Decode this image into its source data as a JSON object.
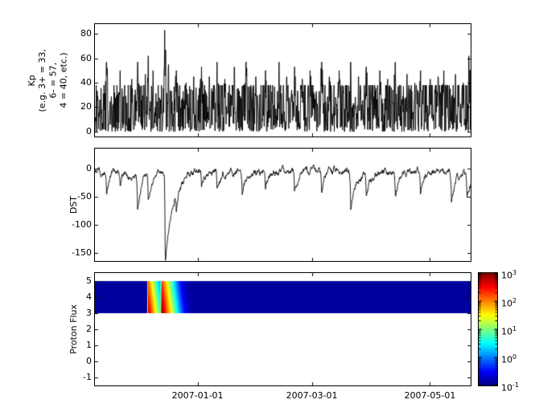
{
  "figure": {
    "background_color": "#ffffff",
    "line_color": "#000000",
    "plot_kind": "space-weather time series (Kp, DST, Proton Flux spectrogram)"
  },
  "x_axis": {
    "span_days": 194,
    "tick_days": [
      53,
      112,
      173
    ],
    "tick_labels": [
      "2007-01-01",
      "2007-03-01",
      "2007-05-01"
    ]
  },
  "chart_data": [
    {
      "type": "line",
      "ylabel": "Kp\n(e.g. 3+ = 33,\n6- = 57,\n4 = 40, etc.)",
      "ylim": [
        -4,
        88
      ],
      "yticks": [
        0,
        20,
        40,
        60,
        80
      ],
      "line_color": "#000000",
      "samples_per_day": 6,
      "seed": 1109,
      "base_level": 38,
      "storm_width_days": 1.1,
      "storm_format": [
        "day",
        "peak_kp_x10"
      ],
      "storms": [
        [
          6,
          57
        ],
        [
          13,
          50
        ],
        [
          19,
          43
        ],
        [
          22,
          57
        ],
        [
          26,
          47
        ],
        [
          27.5,
          62
        ],
        [
          30,
          50
        ],
        [
          36,
          83
        ],
        [
          38,
          55
        ],
        [
          42,
          50
        ],
        [
          47,
          40
        ],
        [
          51,
          45
        ],
        [
          55,
          53
        ],
        [
          59,
          45
        ],
        [
          63,
          57
        ],
        [
          67,
          43
        ],
        [
          72,
          53
        ],
        [
          78,
          57
        ],
        [
          83,
          45
        ],
        [
          88,
          50
        ],
        [
          95,
          57
        ],
        [
          99,
          45
        ],
        [
          103,
          53
        ],
        [
          107,
          43
        ],
        [
          111,
          50
        ],
        [
          117,
          57
        ],
        [
          121,
          45
        ],
        [
          126,
          50
        ],
        [
          132,
          57
        ],
        [
          136,
          45
        ],
        [
          140,
          53
        ],
        [
          147,
          50
        ],
        [
          151,
          43
        ],
        [
          155,
          57
        ],
        [
          161,
          47
        ],
        [
          165,
          40
        ],
        [
          168,
          50
        ],
        [
          173,
          43
        ],
        [
          177,
          45
        ],
        [
          180,
          50
        ],
        [
          186,
          47
        ],
        [
          190,
          40
        ],
        [
          193,
          62
        ]
      ]
    },
    {
      "type": "line",
      "ylabel": "DST",
      "ylim": [
        -165,
        35
      ],
      "yticks": [
        0,
        -50,
        -100,
        -150
      ],
      "line_color": "#000000",
      "samples_per_day": 8,
      "seed": 4242,
      "baseline": -6,
      "dip_format": [
        "day",
        "min_dst_nT",
        "recovery_days"
      ],
      "dips": [
        [
          6,
          -45,
          2
        ],
        [
          13,
          -30,
          1.5
        ],
        [
          22,
          -65,
          2
        ],
        [
          27.5,
          -50,
          2
        ],
        [
          36.3,
          -162,
          3.5
        ],
        [
          42,
          -35,
          1.5
        ],
        [
          55,
          -30,
          1.5
        ],
        [
          63,
          -35,
          1.5
        ],
        [
          76,
          -45,
          2
        ],
        [
          88,
          -30,
          1.5
        ],
        [
          103,
          -35,
          1.5
        ],
        [
          117,
          -40,
          2
        ],
        [
          132,
          -70,
          2.5
        ],
        [
          140,
          -40,
          2
        ],
        [
          155,
          -45,
          2
        ],
        [
          168,
          -35,
          1.5
        ],
        [
          184,
          -55,
          2
        ],
        [
          192,
          -40,
          2
        ]
      ]
    },
    {
      "type": "heatmap",
      "ylabel": "Proton Flux",
      "ylim": [
        -1.5,
        5.5
      ],
      "yticks": [
        5,
        4,
        3,
        2,
        1,
        0,
        -1
      ],
      "band_y_range": [
        3,
        5
      ],
      "flux_baseline": 0.13,
      "colormap": "jet",
      "color_scale": "log10",
      "clim": [
        0.1,
        1000
      ],
      "energy_falloff": 0.8,
      "event_format": [
        "start_day",
        "peak_day",
        "decay_days",
        "peak_flux"
      ],
      "events": [
        [
          27.0,
          27.4,
          1.3,
          600
        ],
        [
          33.8,
          34.6,
          1.4,
          900
        ]
      ],
      "colorbar_base": "10",
      "colorbar_tick_exponents": [
        3,
        2,
        1,
        0,
        -1
      ],
      "colorbar_tick_labels": [
        "10^3",
        "10^2",
        "10^1",
        "10^0",
        "10^-1"
      ]
    }
  ]
}
